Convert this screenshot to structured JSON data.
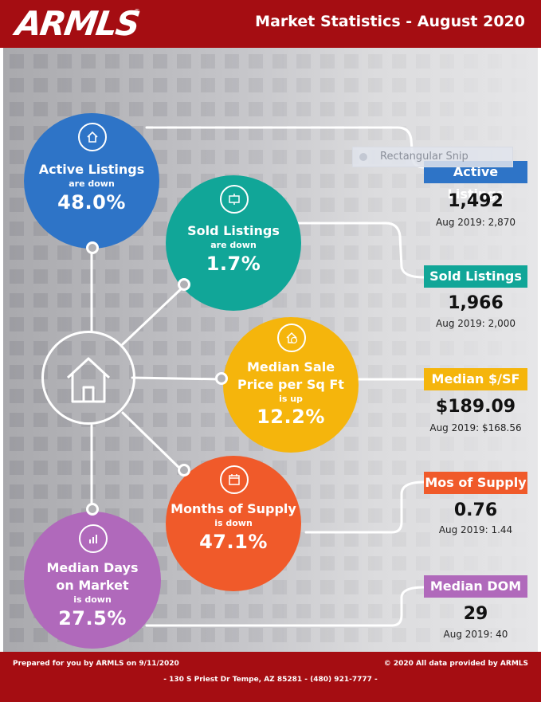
{
  "header": {
    "logo_text": "ARMLS",
    "logo_mark": "®",
    "title": "Market Statistics - August 2020",
    "bg_color": "#a50d12"
  },
  "circles": [
    {
      "id": "active",
      "title_lines": [
        "Active Listings"
      ],
      "direction": "are down",
      "percent": "48.0%",
      "color": "#2e74c7",
      "icon": "house-icon"
    },
    {
      "id": "sold",
      "title_lines": [
        "Sold Listings"
      ],
      "direction": "are down",
      "percent": "1.7%",
      "color": "#11a698",
      "icon": "sold-sign-icon"
    },
    {
      "id": "median_price",
      "title_lines": [
        "Median Sale",
        "Price per Sq Ft"
      ],
      "direction": "is up",
      "percent": "12.2%",
      "color": "#f5b50c",
      "icon": "price-house-icon"
    },
    {
      "id": "supply",
      "title_lines": [
        "Months of Supply"
      ],
      "direction": "is down",
      "percent": "47.1%",
      "color": "#f05a2a",
      "icon": "calendar-icon"
    },
    {
      "id": "dom",
      "title_lines": [
        "Median Days",
        "on Market"
      ],
      "direction": "is down",
      "percent": "27.5%",
      "color": "#b069bb",
      "icon": "bar-chart-icon"
    }
  ],
  "stats": [
    {
      "id": "active",
      "label": "Active Listings",
      "value": "1,492",
      "prior": "Aug 2019: 2,870",
      "color": "#2e74c7"
    },
    {
      "id": "sold",
      "label": "Sold Listings",
      "value": "1,966",
      "prior": "Aug 2019: 2,000",
      "color": "#11a698"
    },
    {
      "id": "median_price",
      "label": "Median $/SF",
      "value": "$189.09",
      "prior": "Aug 2019: $168.56",
      "color": "#f5b50c"
    },
    {
      "id": "supply",
      "label": "Mos of Supply",
      "value": "0.76",
      "prior": "Aug 2019: 1.44",
      "color": "#f05a2a"
    },
    {
      "id": "dom",
      "label": "Median DOM",
      "value": "29",
      "prior": "Aug 2019: 40",
      "color": "#b069bb"
    }
  ],
  "hub_icon": "house-outline-icon",
  "overlay": {
    "label": "Rectangular Snip"
  },
  "footer": {
    "prepared": "Prepared for you by ARMLS on 9/11/2020",
    "copyright": "© 2020 All data provided by ARMLS",
    "address": "- 130 S Priest Dr   Tempe, AZ 85281 - (480) 921-7777 -"
  }
}
